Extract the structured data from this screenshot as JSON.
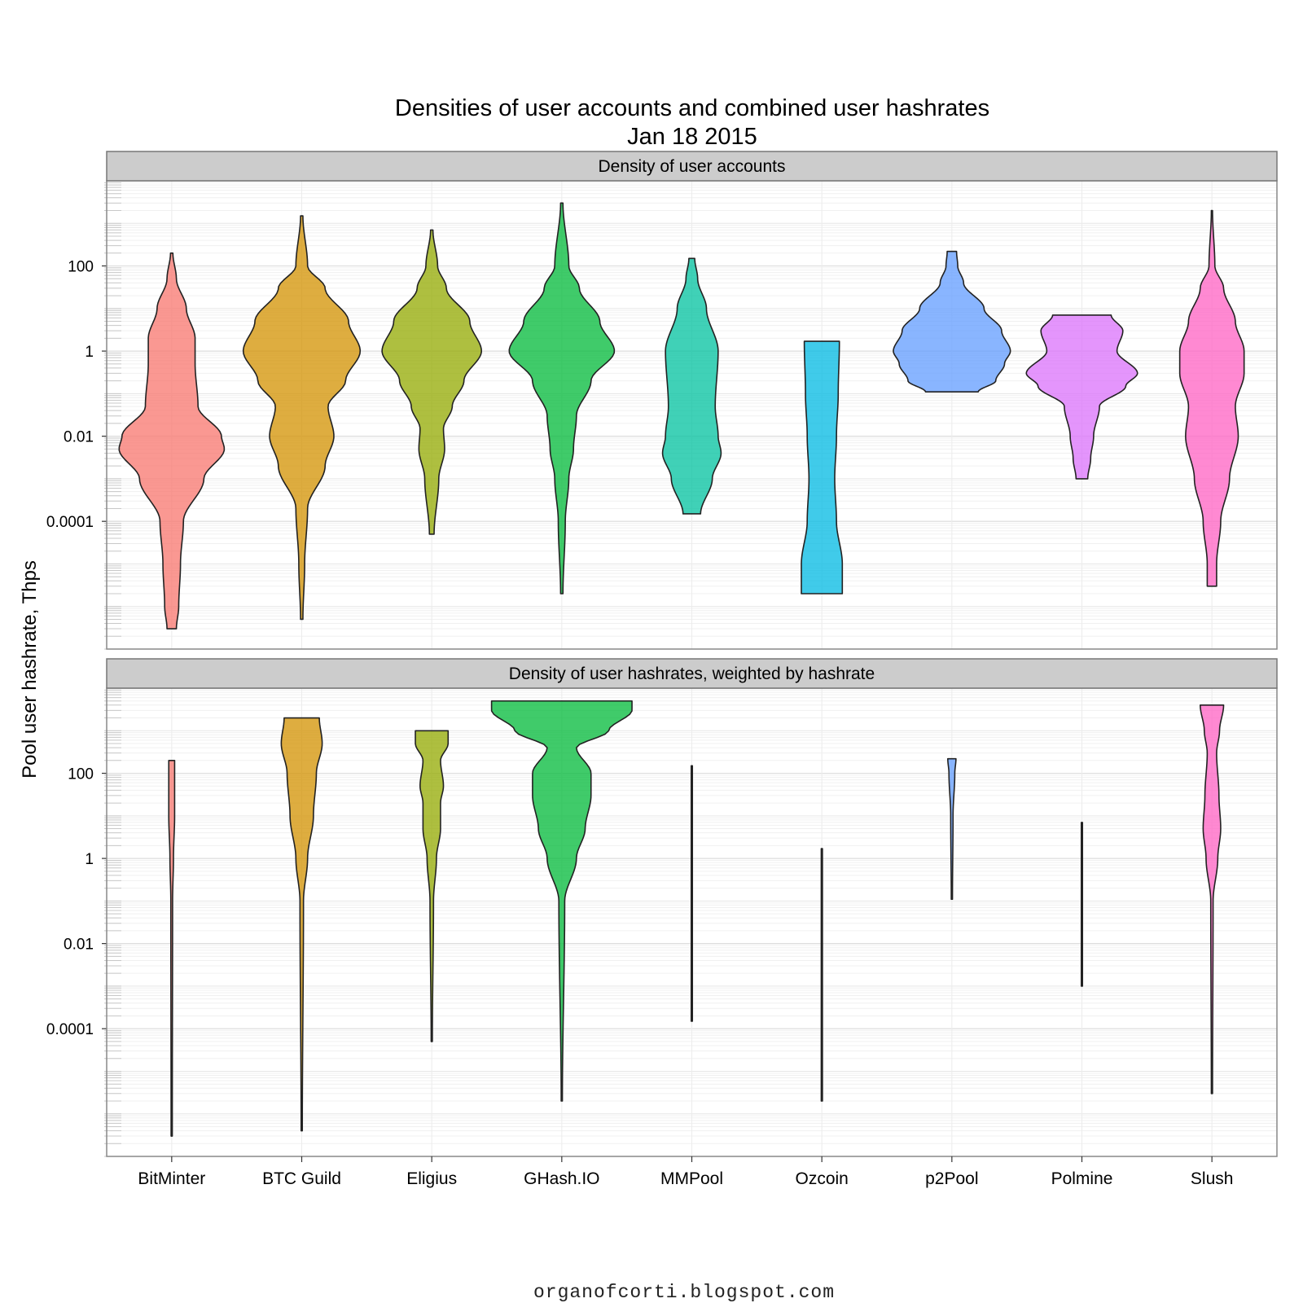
{
  "chart_data": {
    "type": "violin",
    "title": "Densities of user accounts and combined user hashrates",
    "subtitle": "Jan 18 2015",
    "ylabel": "Pool user hashrate, Thps",
    "y_scale": "log10",
    "ylim": [
      1e-07,
      10000
    ],
    "y_ticks": [
      {
        "value": 0.0001,
        "label": "0.0001"
      },
      {
        "value": 0.01,
        "label": "0.01"
      },
      {
        "value": 1,
        "label": "1"
      },
      {
        "value": 100,
        "label": "100"
      }
    ],
    "categories": [
      "BitMinter",
      "BTC Guild",
      "Eligius",
      "GHash.IO",
      "MMPool",
      "Ozcoin",
      "p2Pool",
      "Polmine",
      "Slush"
    ],
    "colors": [
      "#F8766D",
      "#D39200",
      "#93AA00",
      "#00BA38",
      "#00C19F",
      "#00B9E3",
      "#619CFF",
      "#DB72FB",
      "#FF61C3"
    ],
    "credit": "organofcorti.blogspot.com",
    "panels": [
      {
        "strip": "Density of user accounts",
        "violins": [
          {
            "min": 3e-07,
            "max": 200,
            "profile": [
              [
                3e-07,
                0.08
              ],
              [
                1e-06,
                0.12
              ],
              [
                1e-05,
                0.15
              ],
              [
                0.0001,
                0.2
              ],
              [
                0.001,
                0.55
              ],
              [
                0.005,
                0.9
              ],
              [
                0.01,
                0.85
              ],
              [
                0.05,
                0.45
              ],
              [
                0.5,
                0.4
              ],
              [
                2,
                0.4
              ],
              [
                10,
                0.25
              ],
              [
                50,
                0.08
              ],
              [
                200,
                0.02
              ]
            ]
          },
          {
            "min": 5e-07,
            "max": 1500,
            "profile": [
              [
                5e-07,
                0.02
              ],
              [
                1e-05,
                0.05
              ],
              [
                0.0002,
                0.1
              ],
              [
                0.002,
                0.4
              ],
              [
                0.01,
                0.55
              ],
              [
                0.05,
                0.45
              ],
              [
                0.2,
                0.75
              ],
              [
                1,
                1.0
              ],
              [
                5,
                0.8
              ],
              [
                30,
                0.4
              ],
              [
                100,
                0.1
              ],
              [
                1500,
                0.02
              ]
            ]
          },
          {
            "min": 5e-05,
            "max": 700,
            "profile": [
              [
                5e-05,
                0.04
              ],
              [
                0.001,
                0.12
              ],
              [
                0.005,
                0.22
              ],
              [
                0.015,
                0.2
              ],
              [
                0.05,
                0.35
              ],
              [
                0.2,
                0.55
              ],
              [
                1,
                0.85
              ],
              [
                5,
                0.65
              ],
              [
                30,
                0.25
              ],
              [
                100,
                0.1
              ],
              [
                700,
                0.02
              ]
            ]
          },
          {
            "min": 2e-06,
            "max": 3000,
            "profile": [
              [
                2e-06,
                0.02
              ],
              [
                0.0001,
                0.06
              ],
              [
                0.001,
                0.12
              ],
              [
                0.005,
                0.2
              ],
              [
                0.03,
                0.25
              ],
              [
                0.2,
                0.5
              ],
              [
                1,
                0.9
              ],
              [
                5,
                0.65
              ],
              [
                30,
                0.3
              ],
              [
                100,
                0.12
              ],
              [
                3000,
                0.02
              ]
            ]
          },
          {
            "min": 0.00015,
            "max": 150,
            "profile": [
              [
                0.00015,
                0.15
              ],
              [
                0.001,
                0.35
              ],
              [
                0.004,
                0.5
              ],
              [
                0.01,
                0.45
              ],
              [
                0.05,
                0.4
              ],
              [
                1,
                0.45
              ],
              [
                10,
                0.25
              ],
              [
                50,
                0.1
              ],
              [
                150,
                0.05
              ]
            ]
          },
          {
            "min": 2e-06,
            "max": 1.7,
            "profile": [
              [
                2e-06,
                0.35
              ],
              [
                1e-05,
                0.35
              ],
              [
                0.0001,
                0.25
              ],
              [
                0.001,
                0.22
              ],
              [
                0.01,
                0.25
              ],
              [
                0.1,
                0.28
              ],
              [
                1.7,
                0.3
              ]
            ]
          },
          {
            "min": 0.11,
            "max": 220,
            "profile": [
              [
                0.11,
                0.45
              ],
              [
                0.2,
                0.75
              ],
              [
                0.5,
                0.9
              ],
              [
                1,
                1.0
              ],
              [
                3,
                0.85
              ],
              [
                10,
                0.55
              ],
              [
                40,
                0.2
              ],
              [
                100,
                0.1
              ],
              [
                220,
                0.08
              ]
            ]
          },
          {
            "min": 0.001,
            "max": 7,
            "profile": [
              [
                0.001,
                0.1
              ],
              [
                0.003,
                0.15
              ],
              [
                0.01,
                0.2
              ],
              [
                0.05,
                0.3
              ],
              [
                0.15,
                0.75
              ],
              [
                0.3,
                0.95
              ],
              [
                1,
                0.6
              ],
              [
                3,
                0.7
              ],
              [
                7,
                0.5
              ]
            ]
          },
          {
            "min": 3e-06,
            "max": 2000,
            "profile": [
              [
                3e-06,
                0.08
              ],
              [
                1e-05,
                0.08
              ],
              [
                0.0001,
                0.15
              ],
              [
                0.001,
                0.3
              ],
              [
                0.01,
                0.45
              ],
              [
                0.05,
                0.4
              ],
              [
                0.3,
                0.55
              ],
              [
                1,
                0.55
              ],
              [
                5,
                0.4
              ],
              [
                30,
                0.2
              ],
              [
                100,
                0.05
              ],
              [
                2000,
                0.01
              ]
            ]
          }
        ]
      },
      {
        "strip": "Density of user hashrates, weighted by hashrate",
        "violins": [
          {
            "min": 3e-07,
            "max": 200,
            "profile": [
              [
                3e-07,
                0.01
              ],
              [
                0.1,
                0.015
              ],
              [
                1,
                0.03
              ],
              [
                10,
                0.05
              ],
              [
                200,
                0.05
              ]
            ]
          },
          {
            "min": 4e-07,
            "max": 2000,
            "profile": [
              [
                4e-07,
                0.01
              ],
              [
                0.1,
                0.03
              ],
              [
                1,
                0.1
              ],
              [
                10,
                0.2
              ],
              [
                100,
                0.25
              ],
              [
                500,
                0.35
              ],
              [
                2000,
                0.3
              ]
            ]
          },
          {
            "min": 5e-05,
            "max": 1000,
            "profile": [
              [
                5e-05,
                0.01
              ],
              [
                0.1,
                0.03
              ],
              [
                1,
                0.08
              ],
              [
                5,
                0.15
              ],
              [
                20,
                0.15
              ],
              [
                50,
                0.2
              ],
              [
                200,
                0.15
              ],
              [
                500,
                0.28
              ],
              [
                1000,
                0.28
              ]
            ]
          },
          {
            "min": 2e-06,
            "max": 5000,
            "profile": [
              [
                2e-06,
                0.01
              ],
              [
                0.1,
                0.05
              ],
              [
                1,
                0.25
              ],
              [
                5,
                0.4
              ],
              [
                30,
                0.5
              ],
              [
                100,
                0.5
              ],
              [
                400,
                0.25
              ],
              [
                1000,
                0.8
              ],
              [
                3000,
                1.2
              ],
              [
                5000,
                1.2
              ]
            ]
          },
          {
            "min": 0.00015,
            "max": 150,
            "profile": [
              [
                0.00015,
                0.01
              ],
              [
                150,
                0.01
              ]
            ]
          },
          {
            "min": 2e-06,
            "max": 1.7,
            "profile": [
              [
                2e-06,
                0.01
              ],
              [
                1.7,
                0.01
              ]
            ]
          },
          {
            "min": 0.11,
            "max": 220,
            "profile": [
              [
                0.11,
                0.01
              ],
              [
                10,
                0.02
              ],
              [
                100,
                0.05
              ],
              [
                220,
                0.07
              ]
            ]
          },
          {
            "min": 0.001,
            "max": 7,
            "profile": [
              [
                0.001,
                0.01
              ],
              [
                7,
                0.01
              ]
            ]
          },
          {
            "min": 3e-06,
            "max": 4000,
            "profile": [
              [
                3e-06,
                0.01
              ],
              [
                0.1,
                0.02
              ],
              [
                1,
                0.1
              ],
              [
                5,
                0.15
              ],
              [
                30,
                0.12
              ],
              [
                300,
                0.08
              ],
              [
                1000,
                0.13
              ],
              [
                4000,
                0.2
              ]
            ]
          }
        ]
      }
    ]
  }
}
